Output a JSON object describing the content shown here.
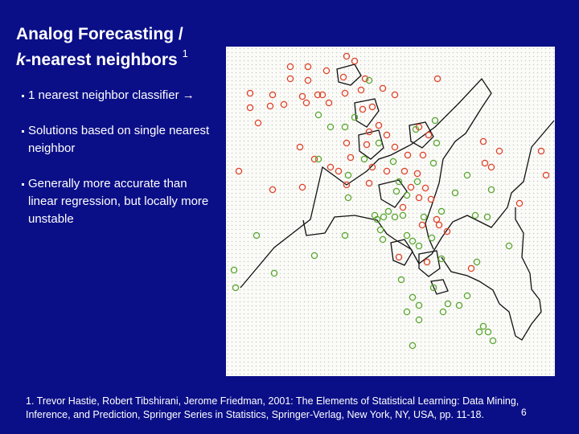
{
  "slide": {
    "title_line1": "Analog Forecasting /",
    "title_k": "k",
    "title_line2_rest": "-nearest neighbors",
    "title_ref": "1",
    "bullets": [
      "1 nearest neighbor classifier →",
      "Solutions based on single nearest neighbor",
      "Generally more accurate than linear regression, but locally more unstable"
    ],
    "footnote": "1. Trevor Hastie, Robert Tibshirani, Jerome Friedman, 2001: The Elements of Statistical Learning: Data Mining, Inference, and Prediction, Springer Series in Statistics, Springer-Verlag, New York, NY, USA, pp. 11-18.",
    "page_number": "6"
  },
  "figure": {
    "background": "#fbfbf8",
    "class_colors": {
      "orange": "#e0442a",
      "green": "#5aa830"
    },
    "boundary_color": "#111111"
  }
}
